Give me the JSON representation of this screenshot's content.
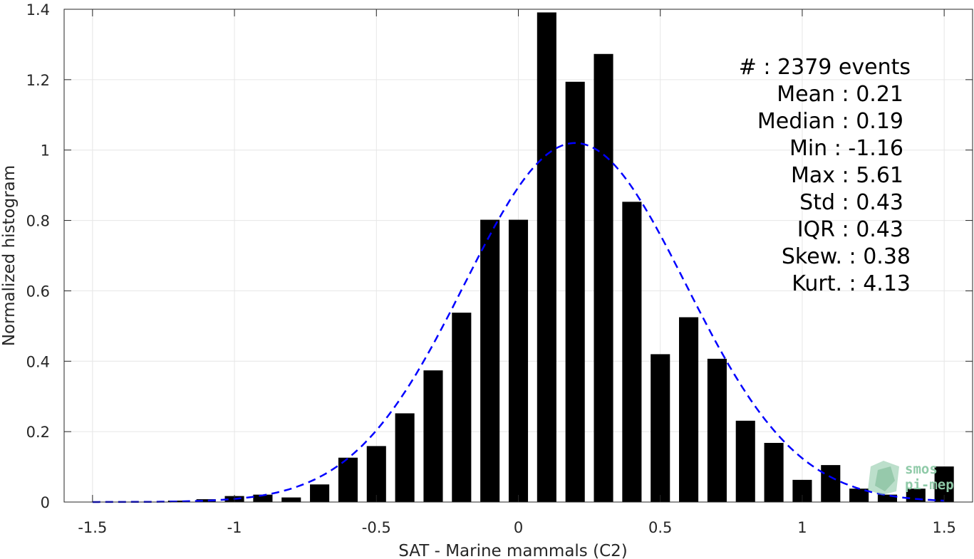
{
  "chart_data": {
    "type": "bar",
    "xlabel": "SAT - Marine mammals (C2)",
    "ylabel": "Normalized histogram",
    "xlim": [
      -1.6,
      1.6
    ],
    "ylim": [
      0,
      1.4
    ],
    "xticks": [
      -1.5,
      -1,
      -0.5,
      0,
      0.5,
      1,
      1.5
    ],
    "xtick_labels": [
      "-1.5",
      "-1",
      "-0.5",
      "0",
      "0.5",
      "1",
      "1.5"
    ],
    "yticks": [
      0,
      0.2,
      0.4,
      0.6,
      0.8,
      1,
      1.2,
      1.4
    ],
    "ytick_labels": [
      "0",
      "0.2",
      "0.4",
      "0.6",
      "0.8",
      "1",
      "1.2",
      "1.4"
    ],
    "grid": true,
    "bar_color": "#000000",
    "bin_centers": [
      -1.5,
      -1.4,
      -1.3,
      -1.2,
      -1.1,
      -1.0,
      -0.9,
      -0.8,
      -0.7,
      -0.6,
      -0.5,
      -0.4,
      -0.3,
      -0.2,
      -0.1,
      0.0,
      0.1,
      0.2,
      0.3,
      0.4,
      0.5,
      0.6,
      0.7,
      0.8,
      0.9,
      1.0,
      1.1,
      1.2,
      1.3,
      1.4,
      1.5
    ],
    "values": [
      0,
      0,
      0,
      0.004,
      0.008,
      0.017,
      0.021,
      0.013,
      0.05,
      0.126,
      0.159,
      0.252,
      0.374,
      0.538,
      0.802,
      0.802,
      1.391,
      1.194,
      1.273,
      0.853,
      0.42,
      0.525,
      0.407,
      0.231,
      0.168,
      0.063,
      0.105,
      0.038,
      0.021,
      0.038,
      0.101
    ],
    "fit": {
      "type": "normal",
      "mean": 0.2,
      "peak": 1.02,
      "std": 0.39,
      "color": "#0000ff",
      "style": "dashed"
    },
    "stats": [
      {
        "label": "#  : 2379 events"
      },
      {
        "label": "Mean : 0.21"
      },
      {
        "label": "Median : 0.19"
      },
      {
        "label": "Min : -1.16"
      },
      {
        "label": "Max : 5.61"
      },
      {
        "label": "Std : 0.43"
      },
      {
        "label": "IQR : 0.43"
      },
      {
        "label": "Skew. : 0.38"
      },
      {
        "label": "Kurt. : 4.13"
      }
    ],
    "logo": {
      "line1": "smos",
      "line2": "pi-mep",
      "color": "#8fcaa8"
    }
  }
}
